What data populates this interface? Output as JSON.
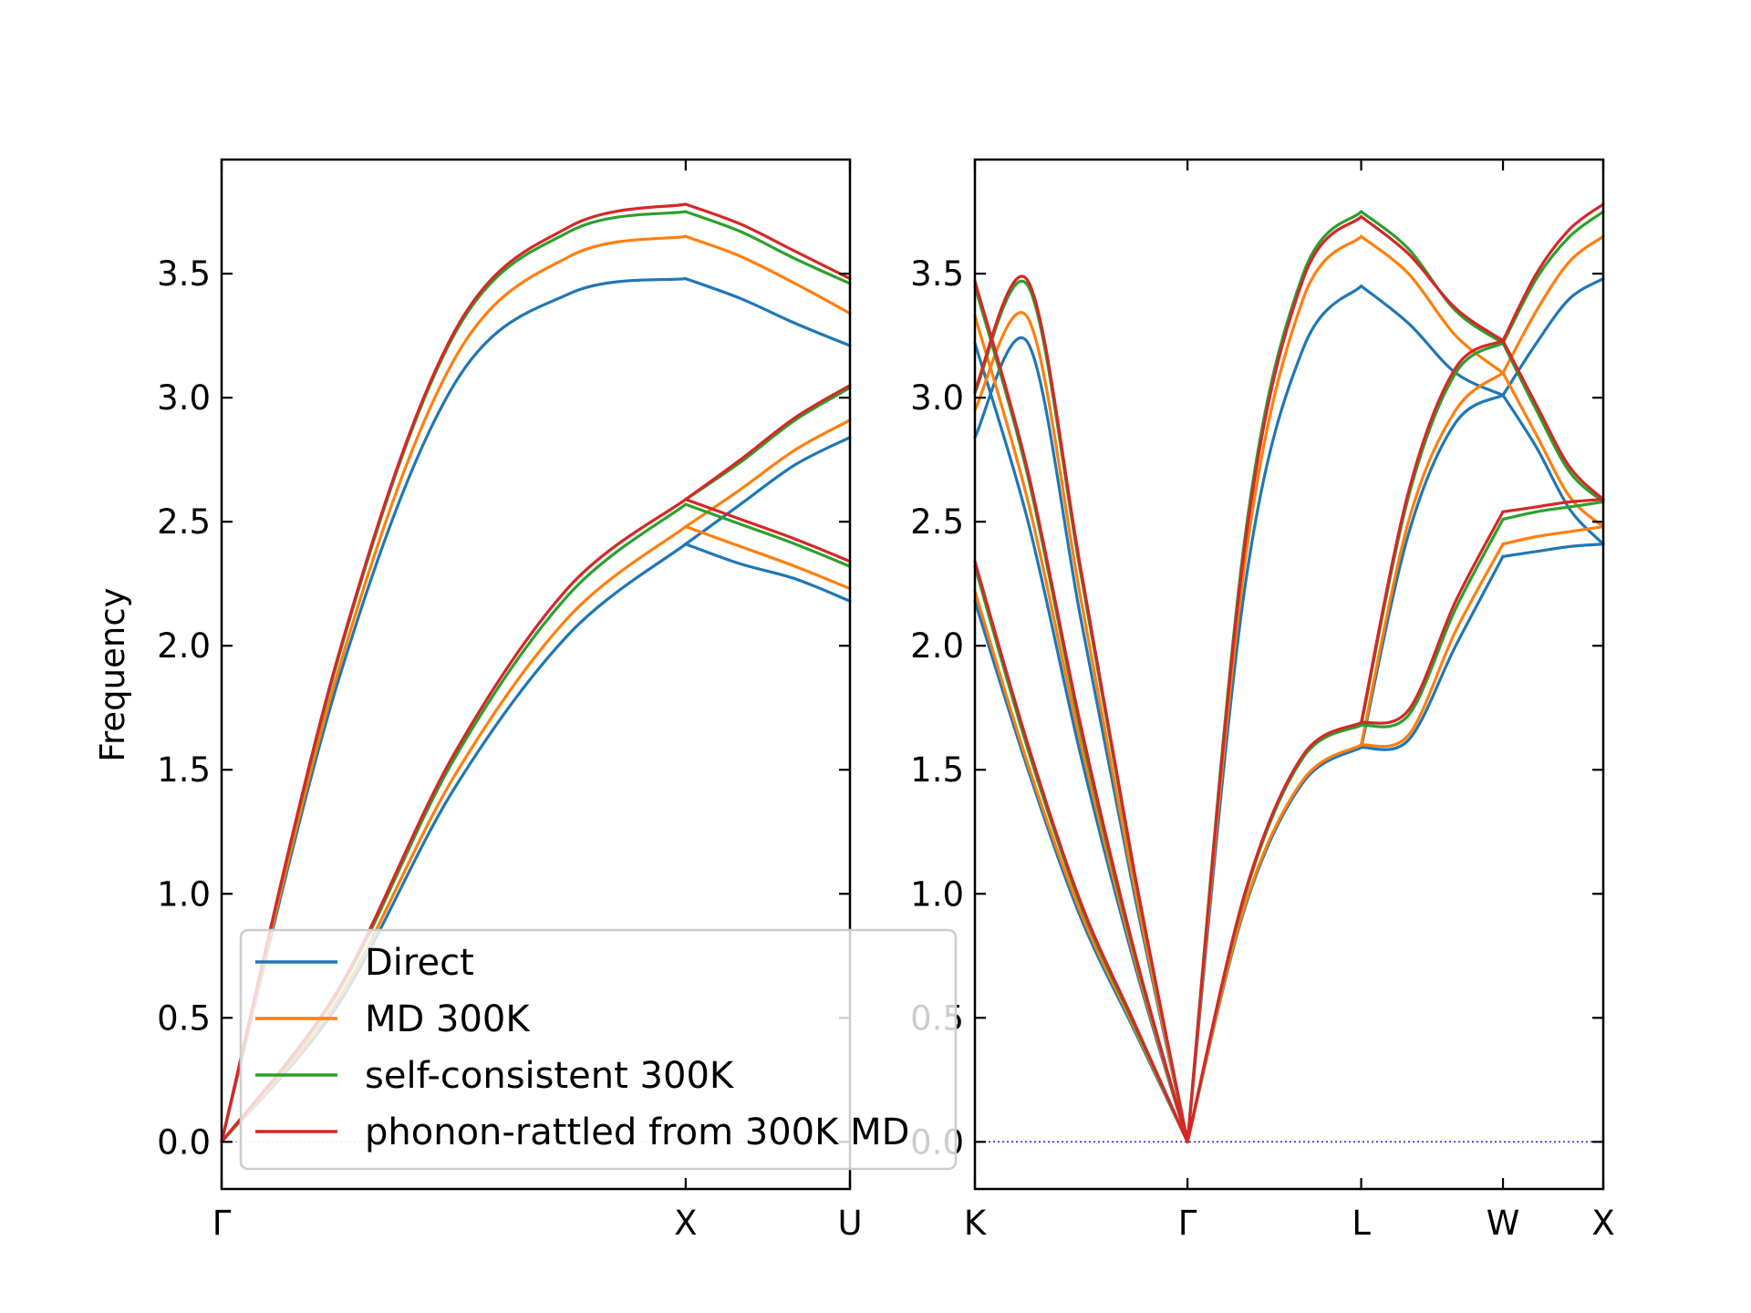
{
  "chart_data": [
    {
      "type": "line",
      "panel": "left",
      "ylabel": "Frequency",
      "ylim": [
        -0.19,
        3.96
      ],
      "yticks": [
        "0.0",
        "0.5",
        "1.0",
        "1.5",
        "2.0",
        "2.5",
        "3.0",
        "3.5"
      ],
      "x_path": [
        "Γ",
        "X",
        "U"
      ],
      "segment_lengths": [
        1.0,
        0.354
      ],
      "series": [
        {
          "name": "Direct",
          "color": "#1f77b4",
          "segments": [
            {
              "lower": [
                0.0,
                0.55,
                1.42,
                2.05,
                2.41
              ],
              "upper": [
                0.0,
                1.85,
                3.05,
                3.42,
                3.48
              ]
            },
            {
              "mixed": [
                2.41,
                2.57,
                2.73,
                2.84
              ],
              "lower": [
                2.41,
                2.33,
                2.27,
                2.18
              ],
              "upper": [
                3.48,
                3.4,
                3.3,
                3.21
              ]
            }
          ]
        },
        {
          "name": "MD 300K",
          "color": "#ff7f0e",
          "segments": [
            {
              "lower": [
                0.0,
                0.57,
                1.47,
                2.12,
                2.48
              ],
              "upper": [
                0.0,
                1.89,
                3.15,
                3.57,
                3.65
              ]
            },
            {
              "mixed": [
                2.48,
                2.63,
                2.79,
                2.91
              ],
              "lower": [
                2.48,
                2.4,
                2.32,
                2.23
              ],
              "upper": [
                3.65,
                3.57,
                3.46,
                3.34
              ]
            }
          ]
        },
        {
          "name": "self-consistent 300K",
          "color": "#2ca02c",
          "segments": [
            {
              "lower": [
                0.0,
                0.6,
                1.54,
                2.21,
                2.57
              ],
              "upper": [
                0.0,
                1.94,
                3.25,
                3.67,
                3.75
              ]
            },
            {
              "mixed": [
                2.59,
                2.74,
                2.91,
                3.04
              ],
              "lower": [
                2.57,
                2.49,
                2.41,
                2.32
              ],
              "upper": [
                3.75,
                3.67,
                3.56,
                3.46
              ]
            }
          ]
        },
        {
          "name": "phonon-rattled from 300K MD",
          "color": "#d62728",
          "segments": [
            {
              "lower": [
                0.0,
                0.61,
                1.56,
                2.24,
                2.59
              ],
              "upper": [
                0.0,
                1.95,
                3.26,
                3.69,
                3.78
              ]
            },
            {
              "mixed": [
                2.59,
                2.75,
                2.92,
                3.05
              ],
              "lower": [
                2.59,
                2.51,
                2.43,
                2.34
              ],
              "upper": [
                3.78,
                3.7,
                3.59,
                3.48
              ]
            }
          ]
        }
      ],
      "zero_line": true,
      "legend": {
        "placement": "lower-right",
        "entries": [
          "Direct",
          "MD 300K",
          "self-consistent 300K",
          "phonon-rattled from 300K MD"
        ]
      }
    },
    {
      "type": "line",
      "panel": "right",
      "ylim": [
        -0.19,
        3.96
      ],
      "yticks": [
        "0.0",
        "0.5",
        "1.0",
        "1.5",
        "2.0",
        "2.5",
        "3.0",
        "3.5"
      ],
      "x_path": [
        "K",
        "Γ",
        "L",
        "W",
        "X"
      ],
      "segment_lengths": [
        1.06,
        0.866,
        0.707,
        0.5
      ],
      "series": [
        {
          "name": "Direct",
          "color": "#1f77b4",
          "segments": [
            {
              "b1": [
                2.18,
                1.5,
                0.9,
                0.45,
                0.0
              ],
              "b2": [
                3.22,
                2.5,
                1.55,
                0.72,
                0.0
              ],
              "b3": [
                2.84,
                3.22,
                2.1,
                1.0,
                0.0
              ]
            },
            {
              "ta": [
                0.0,
                0.95,
                1.45,
                1.59
              ],
              "la": [
                0.0,
                2.25,
                3.2,
                3.45
              ]
            },
            {
              "b1": [
                1.59,
                1.62,
                2.0,
                2.36
              ],
              "b2": [
                1.59,
                2.45,
                2.9,
                3.01
              ],
              "b3": [
                3.45,
                3.3,
                3.1,
                3.01
              ]
            },
            {
              "b1": [
                2.36,
                2.38,
                2.4,
                2.41
              ],
              "b2": [
                3.01,
                2.8,
                2.55,
                2.41
              ],
              "b3": [
                3.01,
                3.22,
                3.4,
                3.48
              ]
            }
          ]
        },
        {
          "name": "MD 300K",
          "color": "#ff7f0e",
          "segments": [
            {
              "b1": [
                2.22,
                1.52,
                0.92,
                0.46,
                0.0
              ],
              "b2": [
                3.33,
                2.58,
                1.6,
                0.74,
                0.0
              ],
              "b3": [
                2.95,
                3.32,
                2.18,
                1.03,
                0.0
              ]
            },
            {
              "ta": [
                0.0,
                0.96,
                1.46,
                1.6
              ],
              "la": [
                0.0,
                2.35,
                3.4,
                3.65
              ]
            },
            {
              "b1": [
                1.6,
                1.64,
                2.06,
                2.41
              ],
              "b2": [
                1.6,
                2.5,
                2.95,
                3.1
              ],
              "b3": [
                3.65,
                3.5,
                3.25,
                3.1
              ]
            },
            {
              "b1": [
                2.41,
                2.44,
                2.46,
                2.48
              ],
              "b2": [
                3.1,
                2.85,
                2.6,
                2.48
              ],
              "b3": [
                3.1,
                3.35,
                3.55,
                3.65
              ]
            }
          ]
        },
        {
          "name": "self-consistent 300K",
          "color": "#2ca02c",
          "segments": [
            {
              "b1": [
                2.32,
                1.58,
                0.95,
                0.47,
                0.0
              ],
              "b2": [
                3.45,
                2.68,
                1.65,
                0.76,
                0.0
              ],
              "b3": [
                3.02,
                3.45,
                2.28,
                1.08,
                0.0
              ]
            },
            {
              "ta": [
                0.0,
                1.0,
                1.55,
                1.68
              ],
              "la": [
                0.0,
                2.45,
                3.5,
                3.75
              ]
            },
            {
              "b1": [
                1.68,
                1.72,
                2.15,
                2.51
              ],
              "b2": [
                1.68,
                2.6,
                3.1,
                3.22
              ],
              "b3": [
                3.75,
                3.6,
                3.35,
                3.22
              ]
            },
            {
              "b1": [
                2.51,
                2.54,
                2.56,
                2.58
              ],
              "b2": [
                3.22,
                2.95,
                2.7,
                2.58
              ],
              "b3": [
                3.22,
                3.48,
                3.65,
                3.75
              ]
            }
          ]
        },
        {
          "name": "phonon-rattled from 300K MD",
          "color": "#d62728",
          "segments": [
            {
              "b1": [
                2.34,
                1.6,
                0.96,
                0.48,
                0.0
              ],
              "b2": [
                3.47,
                2.7,
                1.67,
                0.77,
                0.0
              ],
              "b3": [
                3.03,
                3.47,
                2.3,
                1.09,
                0.0
              ]
            },
            {
              "ta": [
                0.0,
                1.01,
                1.56,
                1.69
              ],
              "la": [
                0.0,
                2.42,
                3.48,
                3.73
              ]
            },
            {
              "b1": [
                1.69,
                1.74,
                2.18,
                2.54
              ],
              "b2": [
                1.69,
                2.62,
                3.12,
                3.23
              ],
              "b3": [
                3.73,
                3.58,
                3.36,
                3.23
              ]
            },
            {
              "b1": [
                2.54,
                2.56,
                2.58,
                2.59
              ],
              "b2": [
                3.23,
                2.97,
                2.72,
                2.59
              ],
              "b3": [
                3.23,
                3.5,
                3.68,
                3.78
              ]
            }
          ]
        }
      ],
      "zero_line": true
    }
  ]
}
